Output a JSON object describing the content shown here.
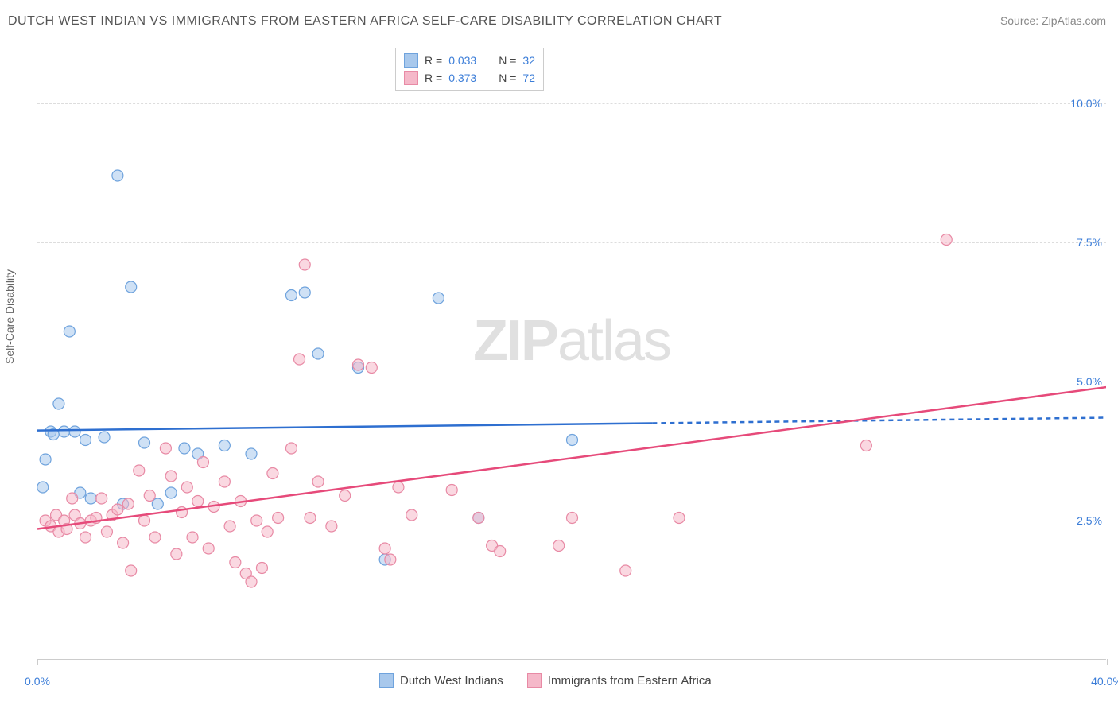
{
  "title": "DUTCH WEST INDIAN VS IMMIGRANTS FROM EASTERN AFRICA SELF-CARE DISABILITY CORRELATION CHART",
  "source": "Source: ZipAtlas.com",
  "y_axis_label": "Self-Care Disability",
  "watermark_zip": "ZIP",
  "watermark_atlas": "atlas",
  "chart": {
    "type": "scatter",
    "xlim": [
      0,
      40
    ],
    "ylim": [
      0,
      11
    ],
    "y_ticks": [
      2.5,
      5.0,
      7.5,
      10.0
    ],
    "y_tick_labels": [
      "2.5%",
      "5.0%",
      "7.5%",
      "10.0%"
    ],
    "x_ticks": [
      0,
      13.33,
      26.67,
      40
    ],
    "x_tick_labels": [
      "0.0%",
      "",
      "",
      "40.0%"
    ],
    "background_color": "#ffffff",
    "grid_color": "#dddddd",
    "marker_radius": 7,
    "marker_opacity": 0.55,
    "trend_line_width": 2.5,
    "series": [
      {
        "name": "Dutch West Indians",
        "color_fill": "#a8c8ec",
        "color_stroke": "#6fa3dd",
        "trend_color": "#2e6fd0",
        "R": "0.033",
        "N": "32",
        "trend": {
          "x1": 0,
          "y1": 4.12,
          "x2": 23,
          "y2": 4.25,
          "dash_after_x": 23,
          "x3": 40,
          "y3": 4.35
        },
        "points": [
          [
            0.2,
            3.1
          ],
          [
            0.3,
            3.6
          ],
          [
            0.5,
            4.1
          ],
          [
            0.6,
            4.05
          ],
          [
            0.8,
            4.6
          ],
          [
            1.0,
            4.1
          ],
          [
            1.2,
            5.9
          ],
          [
            1.4,
            4.1
          ],
          [
            1.6,
            3.0
          ],
          [
            1.8,
            3.95
          ],
          [
            2.0,
            2.9
          ],
          [
            2.5,
            4.0
          ],
          [
            3.0,
            8.7
          ],
          [
            3.2,
            2.8
          ],
          [
            3.5,
            6.7
          ],
          [
            4.0,
            3.9
          ],
          [
            4.5,
            2.8
          ],
          [
            5.0,
            3.0
          ],
          [
            5.5,
            3.8
          ],
          [
            6.0,
            3.7
          ],
          [
            7.0,
            3.85
          ],
          [
            8.0,
            3.7
          ],
          [
            9.5,
            6.55
          ],
          [
            10.0,
            6.6
          ],
          [
            10.5,
            5.5
          ],
          [
            12.0,
            5.25
          ],
          [
            13.0,
            1.8
          ],
          [
            15.0,
            6.5
          ],
          [
            16.5,
            2.55
          ],
          [
            20.0,
            3.95
          ]
        ]
      },
      {
        "name": "Immigrants from Eastern Africa",
        "color_fill": "#f5b8c9",
        "color_stroke": "#e88aa5",
        "trend_color": "#e64a7a",
        "R": "0.373",
        "N": "72",
        "trend": {
          "x1": 0,
          "y1": 2.35,
          "x2": 40,
          "y2": 4.9
        },
        "points": [
          [
            0.3,
            2.5
          ],
          [
            0.5,
            2.4
          ],
          [
            0.7,
            2.6
          ],
          [
            0.8,
            2.3
          ],
          [
            1.0,
            2.5
          ],
          [
            1.1,
            2.35
          ],
          [
            1.3,
            2.9
          ],
          [
            1.4,
            2.6
          ],
          [
            1.6,
            2.45
          ],
          [
            1.8,
            2.2
          ],
          [
            2.0,
            2.5
          ],
          [
            2.2,
            2.55
          ],
          [
            2.4,
            2.9
          ],
          [
            2.6,
            2.3
          ],
          [
            2.8,
            2.6
          ],
          [
            3.0,
            2.7
          ],
          [
            3.2,
            2.1
          ],
          [
            3.4,
            2.8
          ],
          [
            3.5,
            1.6
          ],
          [
            3.8,
            3.4
          ],
          [
            4.0,
            2.5
          ],
          [
            4.2,
            2.95
          ],
          [
            4.4,
            2.2
          ],
          [
            4.8,
            3.8
          ],
          [
            5.0,
            3.3
          ],
          [
            5.2,
            1.9
          ],
          [
            5.4,
            2.65
          ],
          [
            5.6,
            3.1
          ],
          [
            5.8,
            2.2
          ],
          [
            6.0,
            2.85
          ],
          [
            6.2,
            3.55
          ],
          [
            6.4,
            2.0
          ],
          [
            6.6,
            2.75
          ],
          [
            7.0,
            3.2
          ],
          [
            7.2,
            2.4
          ],
          [
            7.4,
            1.75
          ],
          [
            7.6,
            2.85
          ],
          [
            7.8,
            1.55
          ],
          [
            8.0,
            1.4
          ],
          [
            8.2,
            2.5
          ],
          [
            8.4,
            1.65
          ],
          [
            8.6,
            2.3
          ],
          [
            8.8,
            3.35
          ],
          [
            9.0,
            2.55
          ],
          [
            9.5,
            3.8
          ],
          [
            9.8,
            5.4
          ],
          [
            10.0,
            7.1
          ],
          [
            10.2,
            2.55
          ],
          [
            10.5,
            3.2
          ],
          [
            11.0,
            2.4
          ],
          [
            11.5,
            2.95
          ],
          [
            12.0,
            5.3
          ],
          [
            12.5,
            5.25
          ],
          [
            13.0,
            2.0
          ],
          [
            13.2,
            1.8
          ],
          [
            13.5,
            3.1
          ],
          [
            14.0,
            2.6
          ],
          [
            15.5,
            3.05
          ],
          [
            16.5,
            2.55
          ],
          [
            17.0,
            2.05
          ],
          [
            17.3,
            1.95
          ],
          [
            19.5,
            2.05
          ],
          [
            20.0,
            2.55
          ],
          [
            22.0,
            1.6
          ],
          [
            24.0,
            2.55
          ],
          [
            31.0,
            3.85
          ],
          [
            34.0,
            7.55
          ]
        ]
      }
    ]
  },
  "legend_top": {
    "rows": [
      {
        "swatch_fill": "#a8c8ec",
        "swatch_stroke": "#6fa3dd",
        "r_label": "R =",
        "r_val": "0.033",
        "n_label": "N =",
        "n_val": "32"
      },
      {
        "swatch_fill": "#f5b8c9",
        "swatch_stroke": "#e88aa5",
        "r_label": "R =",
        "r_val": "0.373",
        "n_label": "N =",
        "n_val": "72"
      }
    ]
  },
  "legend_bottom": {
    "items": [
      {
        "swatch_fill": "#a8c8ec",
        "swatch_stroke": "#6fa3dd",
        "label": "Dutch West Indians"
      },
      {
        "swatch_fill": "#f5b8c9",
        "swatch_stroke": "#e88aa5",
        "label": "Immigrants from Eastern Africa"
      }
    ]
  }
}
